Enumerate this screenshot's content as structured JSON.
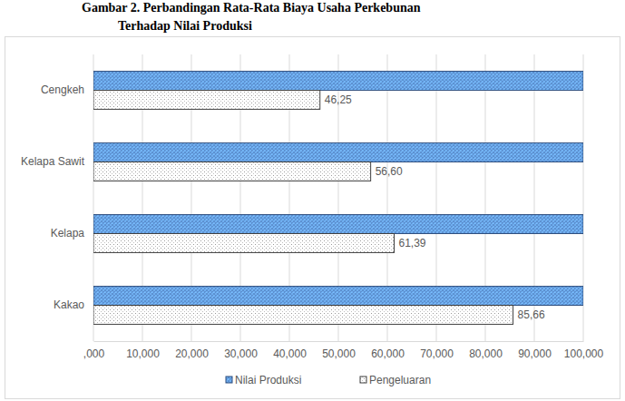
{
  "chart_data": {
    "type": "bar",
    "orientation": "horizontal",
    "title": [
      "Gambar 2. Perbandingan Rata-Rata Biaya Usaha Perkebunan",
      "Terhadap Nilai Produksi"
    ],
    "categories": [
      "Cengkeh",
      "Kelapa Sawit",
      "Kelapa",
      "Kakao"
    ],
    "series": [
      {
        "name": "Nilai Produksi",
        "color": "#5b8fd0",
        "values": [
          100,
          100,
          100,
          100
        ]
      },
      {
        "name": "Pengeluaran",
        "color": "#bfbfbf",
        "values": [
          46.25,
          56.6,
          61.39,
          85.66
        ],
        "value_labels": [
          "46,25",
          "56,60",
          "61,39",
          "85,66"
        ]
      }
    ],
    "xlim": [
      0,
      100
    ],
    "xticks": [
      {
        "value": 0,
        "label": ",000"
      },
      {
        "value": 10,
        "label": "10,000"
      },
      {
        "value": 20,
        "label": "20,000"
      },
      {
        "value": 30,
        "label": "30,000"
      },
      {
        "value": 40,
        "label": "40,000"
      },
      {
        "value": 50,
        "label": "50,000"
      },
      {
        "value": 60,
        "label": "60,000"
      },
      {
        "value": 70,
        "label": "70,000"
      },
      {
        "value": 80,
        "label": "80,000"
      },
      {
        "value": 90,
        "label": "90,000"
      },
      {
        "value": 100,
        "label": "100,000"
      }
    ],
    "grid": true,
    "data_labels": true,
    "legend": "bottom"
  }
}
